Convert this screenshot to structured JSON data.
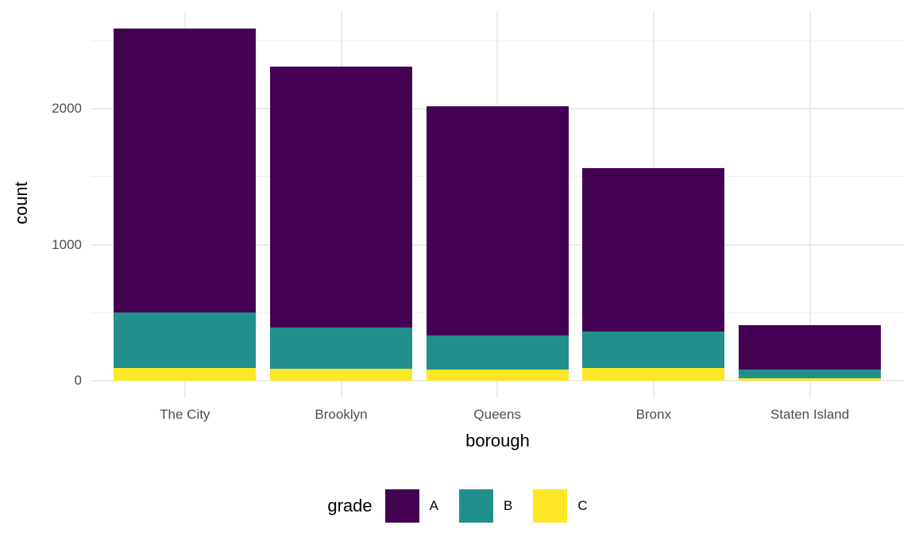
{
  "chart_data": {
    "type": "bar",
    "stacked": true,
    "title": "",
    "xlabel": "borough",
    "ylabel": "count",
    "categories": [
      "The City",
      "Brooklyn",
      "Queens",
      "Bronx",
      "Staten Island"
    ],
    "series": [
      {
        "name": "A",
        "color": "#440154",
        "values": [
          2090,
          1920,
          1690,
          1205,
          330
        ]
      },
      {
        "name": "B",
        "color": "#21908C",
        "values": [
          405,
          300,
          250,
          265,
          65
        ]
      },
      {
        "name": "C",
        "color": "#FDE725",
        "values": [
          95,
          90,
          80,
          95,
          15
        ]
      }
    ],
    "stack_order_bottom_to_top": [
      "C",
      "B",
      "A"
    ],
    "totals": [
      2590,
      2310,
      2020,
      1565,
      410
    ],
    "y_ticks": [
      0,
      1000,
      2000
    ],
    "y_minor_ticks": [
      500,
      1500,
      2500
    ],
    "ylim": [
      0,
      2720
    ],
    "grid": true,
    "legend": {
      "title": "grade",
      "position": "bottom",
      "entries": [
        "A",
        "B",
        "C"
      ]
    }
  },
  "colors": {
    "background": "#FFFFFF",
    "grid_major": "#EBEBEB",
    "grid_minor": "#F0F0F0",
    "axis_text": "#4D4D4D",
    "title_text": "#000000"
  }
}
